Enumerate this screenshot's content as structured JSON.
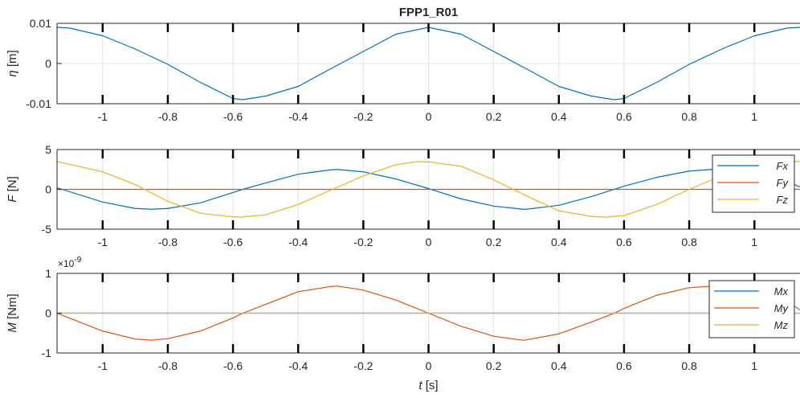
{
  "chart_data": [
    {
      "type": "line",
      "title": "FPP1_R01",
      "ylabel": "η [m]",
      "ylabel_symbol": "η",
      "ylabel_unit": "[m]",
      "xlabel": "",
      "xlim": [
        -1.14,
        1.14
      ],
      "ylim": [
        -0.01,
        0.01
      ],
      "yticks": [
        -0.01,
        0,
        0.01
      ],
      "ytick_labels": [
        "-0.01",
        "0",
        "0.01"
      ],
      "xticks": [
        -1,
        -0.8,
        -0.6,
        -0.4,
        -0.2,
        0,
        0.2,
        0.4,
        0.6,
        0.8,
        1
      ],
      "xtick_labels": [
        "-1",
        "-0.8",
        "-0.6",
        "-0.4",
        "-0.2",
        "0",
        "0.2",
        "0.4",
        "0.6",
        "0.8",
        "1"
      ],
      "grid": true,
      "series": [
        {
          "color": "#0072BD",
          "x": [
            -1.14,
            -1.1,
            -1.0,
            -0.9,
            -0.8,
            -0.7,
            -0.6,
            -0.57,
            -0.5,
            -0.4,
            -0.3,
            -0.2,
            -0.1,
            0,
            0.1,
            0.2,
            0.3,
            0.4,
            0.5,
            0.57,
            0.6,
            0.7,
            0.8,
            0.9,
            1.0,
            1.1,
            1.14
          ],
          "y": [
            0.009,
            0.0088,
            0.0069,
            0.0036,
            -0.0002,
            -0.0047,
            -0.0087,
            -0.009,
            -0.0081,
            -0.0057,
            -0.0013,
            0.003,
            0.0073,
            0.009,
            0.0073,
            0.003,
            -0.0013,
            -0.0057,
            -0.0081,
            -0.009,
            -0.0087,
            -0.0047,
            -0.0002,
            0.0036,
            0.0069,
            0.0088,
            0.009
          ]
        }
      ]
    },
    {
      "type": "line",
      "title": "",
      "ylabel": "F [N]",
      "ylabel_symbol": "F",
      "ylabel_unit": "[N]",
      "xlabel": "",
      "xlim": [
        -1.14,
        1.14
      ],
      "ylim": [
        -5,
        5
      ],
      "yticks": [
        -5,
        0,
        5
      ],
      "ytick_labels": [
        "-5",
        "0",
        "5"
      ],
      "xticks": [
        -1,
        -0.8,
        -0.6,
        -0.4,
        -0.2,
        0,
        0.2,
        0.4,
        0.6,
        0.8,
        1
      ],
      "xtick_labels": [
        "-1",
        "-0.8",
        "-0.6",
        "-0.4",
        "-0.2",
        "0",
        "0.2",
        "0.4",
        "0.6",
        "0.8",
        "1"
      ],
      "grid": true,
      "legend": "top-right",
      "series": [
        {
          "name": "Fx",
          "color": "#0072BD",
          "x": [
            -1.14,
            -1.0,
            -0.9,
            -0.85,
            -0.8,
            -0.7,
            -0.6,
            -0.57,
            -0.5,
            -0.4,
            -0.3,
            -0.28,
            -0.2,
            -0.1,
            0,
            0.1,
            0.2,
            0.29,
            0.3,
            0.4,
            0.5,
            0.57,
            0.6,
            0.7,
            0.8,
            0.87,
            0.9,
            1.0,
            1.1,
            1.14
          ],
          "y": [
            0.2,
            -1.6,
            -2.4,
            -2.5,
            -2.4,
            -1.7,
            -0.4,
            0.0,
            0.8,
            1.9,
            2.45,
            2.5,
            2.2,
            1.3,
            0.1,
            -1.2,
            -2.1,
            -2.5,
            -2.5,
            -2.0,
            -0.9,
            0.0,
            0.4,
            1.5,
            2.3,
            2.5,
            2.4,
            2.1,
            1.0,
            0.3
          ]
        },
        {
          "name": "Fy",
          "color": "#D95319",
          "x": [
            -1.14,
            1.14
          ],
          "y": [
            0,
            0
          ]
        },
        {
          "name": "Fz",
          "color": "#EDB120",
          "x": [
            -1.14,
            -1.0,
            -0.9,
            -0.8,
            -0.7,
            -0.6,
            -0.58,
            -0.5,
            -0.4,
            -0.3,
            -0.2,
            -0.1,
            -0.03,
            0,
            0.1,
            0.2,
            0.3,
            0.4,
            0.5,
            0.54,
            0.6,
            0.7,
            0.8,
            0.9,
            1.0,
            1.1,
            1.14
          ],
          "y": [
            3.5,
            2.2,
            0.6,
            -1.5,
            -3.0,
            -3.45,
            -3.5,
            -3.2,
            -1.9,
            -0.1,
            1.7,
            3.1,
            3.5,
            3.45,
            2.9,
            1.2,
            -0.8,
            -2.7,
            -3.4,
            -3.5,
            -3.3,
            -1.9,
            0.0,
            1.7,
            3.0,
            3.5,
            3.5
          ]
        }
      ]
    },
    {
      "type": "line",
      "title": "",
      "ylabel": "M [Nm]",
      "ylabel_symbol": "M",
      "ylabel_unit": "[Nm]",
      "xlabel": "t [s]",
      "xlabel_symbol": "t",
      "xlabel_unit": "[s]",
      "y_exponent_label": "×10",
      "y_exponent": "-9",
      "xlim": [
        -1.14,
        1.14
      ],
      "ylim": [
        -1,
        1
      ],
      "yticks": [
        -1,
        0,
        1
      ],
      "ytick_labels": [
        "-1",
        "0",
        "1"
      ],
      "xticks": [
        -1,
        -0.8,
        -0.6,
        -0.4,
        -0.2,
        0,
        0.2,
        0.4,
        0.6,
        0.8,
        1
      ],
      "xtick_labels": [
        "-1",
        "-0.8",
        "-0.6",
        "-0.4",
        "-0.2",
        "0",
        "0.2",
        "0.4",
        "0.6",
        "0.8",
        "1"
      ],
      "grid": true,
      "legend": "top-right",
      "series": [
        {
          "name": "Mx",
          "color": "#0072BD",
          "x": [
            -1.14,
            1.14
          ],
          "y": [
            0,
            0
          ]
        },
        {
          "name": "My",
          "color": "#D95319",
          "x": [
            -1.14,
            -1.0,
            -0.9,
            -0.85,
            -0.8,
            -0.7,
            -0.6,
            -0.57,
            -0.5,
            -0.4,
            -0.3,
            -0.28,
            -0.2,
            -0.1,
            0,
            0.1,
            0.2,
            0.29,
            0.3,
            0.4,
            0.5,
            0.57,
            0.6,
            0.7,
            0.8,
            0.87,
            0.9,
            1.0,
            1.1,
            1.14
          ],
          "y": [
            0.0,
            -0.45,
            -0.65,
            -0.68,
            -0.64,
            -0.45,
            -0.12,
            0.0,
            0.22,
            0.54,
            0.67,
            0.68,
            0.58,
            0.33,
            0.0,
            -0.33,
            -0.58,
            -0.68,
            -0.67,
            -0.52,
            -0.22,
            0.0,
            0.12,
            0.45,
            0.64,
            0.68,
            0.66,
            0.55,
            0.3,
            0.08
          ]
        },
        {
          "name": "Mz",
          "color": "#EDB120",
          "x": [
            -1.14,
            1.14
          ],
          "y": [
            0,
            0
          ]
        }
      ]
    }
  ]
}
